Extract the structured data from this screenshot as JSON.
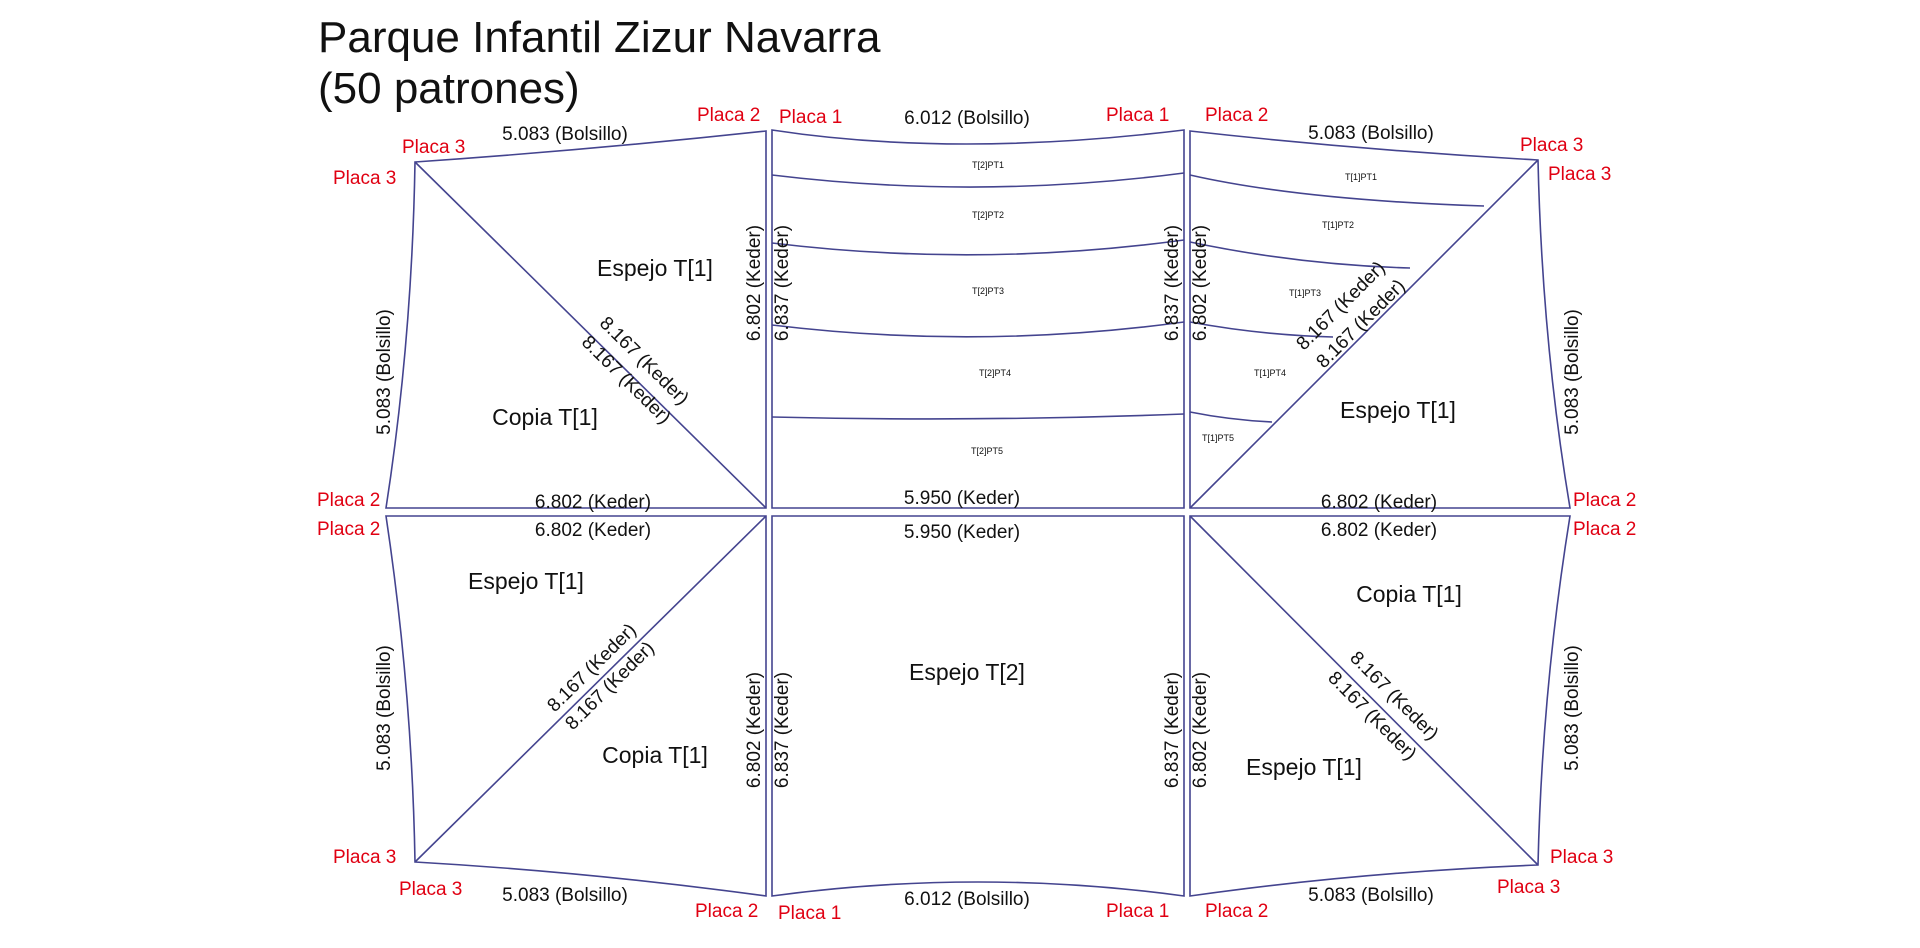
{
  "title": {
    "line1": "Parque Infantil Zizur Navarra",
    "line2": "(50 patrones)"
  },
  "colors": {
    "outline": "#44448f",
    "plate_label": "#e00012",
    "text": "#111111"
  },
  "plates": {
    "p1": "Placa 1",
    "p2": "Placa 2",
    "p3": "Placa 3"
  },
  "dims": {
    "bolsillo_side": "5.083 (Bolsillo)",
    "bolsillo_center": "6.012 (Bolsillo)",
    "keder_6802": "6.802 (Keder)",
    "keder_6837": "6.837 (Keder)",
    "keder_5950": "5.950 (Keder)",
    "keder_8167": "8.167 (Keder)"
  },
  "panels": {
    "espejo_t1": "Espejo T[1]",
    "copia_t1": "Copia T[1]",
    "espejo_t2": "Espejo T[2]"
  },
  "strips_t2": [
    "T[2]PT1",
    "T[2]PT2",
    "T[2]PT3",
    "T[2]PT4",
    "T[2]PT5"
  ],
  "strips_t1": [
    "T[1]PT1",
    "T[1]PT2",
    "T[1]PT3",
    "T[1]PT4",
    "T[1]PT5"
  ]
}
